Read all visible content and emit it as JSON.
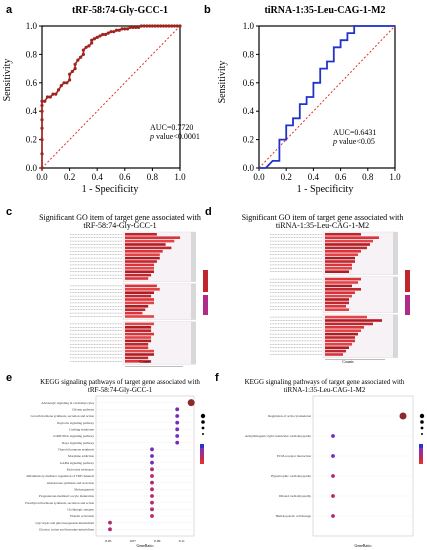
{
  "panels": {
    "a": {
      "label": "a",
      "title": "tRF-58:74-Gly-GCC-1",
      "ylabel": "Sensitivity",
      "xlabel": "1 - Specificity",
      "auc": "AUC=0.7720",
      "p_prefix": "p",
      "p_value": " value<0.0001",
      "ticks": [
        "0.0",
        "0.2",
        "0.4",
        "0.6",
        "0.8",
        "1.0"
      ]
    },
    "b": {
      "label": "b",
      "title": "tiRNA-1:35-Leu-CAG-1-M2",
      "ylabel": "Sensitivity",
      "xlabel": "1 - Specificity",
      "auc": "AUC=0.6431",
      "p_prefix": "p",
      "p_value": " value<0.05",
      "ticks": [
        "0.0",
        "0.2",
        "0.4",
        "0.6",
        "0.8",
        "1.0"
      ]
    },
    "c": {
      "label": "c",
      "title_line1": "Significant GO  item of target gene associated with",
      "title_line2": "tRF-58:74-Gly-GCC-1",
      "xlabel": "Counts"
    },
    "d": {
      "label": "d",
      "title_line1": "Significant GO  item of target gene associated with",
      "title_line2": "tiRNA-1:35-Leu-CAG-1-M2",
      "xlabel": "Counts"
    },
    "e": {
      "label": "e",
      "title_line1": "KEGG signaling pathways of target gene associated with",
      "title_line2": "tRF-58:74-Gly-GCC-1",
      "xlabel": "GeneRatio",
      "xticks": [
        "0.05",
        "0.07",
        "0.09",
        "0.11"
      ],
      "pathways": [
        "Adrenergic signaling in cardiomyocytes",
        "Glioma pathway",
        "Growth hormone synthesis, secretion and action",
        "Oxytocin signaling pathway",
        "Cushing syndrome",
        "cGMP-PKG signaling pathway",
        "Rap1 signaling pathway",
        "Thyroid hormone synthesis",
        "Morphine addiction",
        "GABA signaling pathway",
        "Endocrine resistance",
        "Inflammatory mediator regulation of TRP channels",
        "Aldosterone synthesis and secretion",
        "Melanogenesis",
        "Progesterone-mediated oocyte maturation",
        "Parathyroid hormone synthesis, secretion and action",
        "Cholinergic synapse",
        "Platelet activation",
        "Glycolysis and gluconeogenesis metabolism",
        "Glycine, serine and threonine metabolism"
      ]
    },
    "f": {
      "label": "f",
      "title_line1": "KEGG signaling pathways of target gene associated with",
      "title_line2": "tiRNA-1:35-Leu-CAG-1-M2",
      "xlabel": "GeneRatio",
      "pathways": [
        "Regulation of actin cytoskeleton",
        "Arrhythmogenic right ventricular cardiomyopathy",
        "ECM-receptor interaction",
        "Hypertrophic cardiomyopathy",
        "Dilated cardiomyopathy",
        "Hematopoietic cell lineage"
      ]
    }
  },
  "chart_data": [
    {
      "type": "line",
      "panel": "a",
      "title": "tRF-58:74-Gly-GCC-1",
      "xlabel": "1 - Specificity",
      "ylabel": "Sensitivity",
      "xlim": [
        0,
        1
      ],
      "ylim": [
        0,
        1
      ],
      "series": [
        {
          "x": [
            0,
            0,
            0,
            0,
            0,
            0,
            0,
            0,
            0.02,
            0.04,
            0.06,
            0.08,
            0.1,
            0.12,
            0.14,
            0.16,
            0.18,
            0.2,
            0.2,
            0.22,
            0.24,
            0.24,
            0.26,
            0.28,
            0.3,
            0.3,
            0.32,
            0.34,
            0.36,
            0.36,
            0.38,
            0.4,
            0.42,
            0.44,
            0.46,
            0.48,
            0.5,
            0.52,
            0.54,
            0.56,
            0.58,
            0.6,
            0.62,
            0.64,
            0.66,
            0.68,
            0.7,
            0.72,
            0.74,
            0.76,
            0.78,
            0.8,
            0.82,
            0.84,
            0.86,
            0.88,
            0.9,
            0.92,
            0.94,
            0.96,
            0.98,
            1.0
          ],
          "y": [
            0,
            0.1,
            0.2,
            0.28,
            0.34,
            0.4,
            0.44,
            0.47,
            0.47,
            0.5,
            0.5,
            0.52,
            0.52,
            0.55,
            0.58,
            0.6,
            0.6,
            0.62,
            0.66,
            0.68,
            0.7,
            0.73,
            0.76,
            0.78,
            0.8,
            0.83,
            0.85,
            0.86,
            0.88,
            0.9,
            0.91,
            0.92,
            0.93,
            0.94,
            0.94,
            0.95,
            0.96,
            0.96,
            0.97,
            0.97,
            0.98,
            0.98,
            0.98,
            0.99,
            0.99,
            0.99,
            0.99,
            1.0,
            1.0,
            1.0,
            1.0,
            1.0,
            1.0,
            1.0,
            1.0,
            1.0,
            1.0,
            1.0,
            1.0,
            1.0,
            1.0,
            1.0
          ]
        }
      ]
    },
    {
      "type": "line",
      "panel": "b",
      "title": "tiRNA-1:35-Leu-CAG-1-M2",
      "xlabel": "1 - Specificity",
      "ylabel": "Sensitivity",
      "xlim": [
        0,
        1
      ],
      "ylim": [
        0,
        1
      ],
      "series": [
        {
          "x": [
            0,
            0.05,
            0.1,
            0.15,
            0.15,
            0.2,
            0.2,
            0.25,
            0.25,
            0.3,
            0.3,
            0.35,
            0.35,
            0.4,
            0.4,
            0.45,
            0.45,
            0.5,
            0.5,
            0.55,
            0.55,
            0.6,
            0.6,
            0.65,
            0.65,
            0.7,
            0.7,
            1.0
          ],
          "y": [
            0,
            0,
            0.05,
            0.05,
            0.2,
            0.2,
            0.3,
            0.3,
            0.35,
            0.35,
            0.45,
            0.45,
            0.5,
            0.5,
            0.6,
            0.6,
            0.7,
            0.7,
            0.75,
            0.75,
            0.85,
            0.85,
            0.9,
            0.9,
            0.95,
            0.95,
            1.0,
            1.0
          ]
        }
      ]
    },
    {
      "type": "scatter",
      "panel": "e",
      "xlabel": "GeneRatio",
      "xlim": [
        0.05,
        0.12
      ],
      "categories": [
        "Adrenergic signaling in cardiomyocytes",
        "Glioma pathway",
        "Growth hormone synthesis, secretion and action",
        "Oxytocin signaling pathway",
        "Cushing syndrome",
        "cGMP-PKG signaling pathway",
        "Rap1 signaling pathway",
        "Thyroid hormone synthesis",
        "Morphine addiction",
        "GABA signaling pathway",
        "Endocrine resistance",
        "Inflammatory mediator regulation of TRP channels",
        "Aldosterone synthesis and secretion",
        "Melanogenesis",
        "Progesterone-mediated oocyte maturation",
        "Parathyroid hormone synthesis, secretion and action",
        "Cholinergic synapse",
        "Platelet activation",
        "Glycolysis and gluconeogenesis metabolism",
        "Glycine, serine and threonine metabolism"
      ],
      "values": [
        0.118,
        0.108,
        0.108,
        0.108,
        0.108,
        0.108,
        0.108,
        0.09,
        0.09,
        0.09,
        0.09,
        0.09,
        0.09,
        0.09,
        0.09,
        0.09,
        0.09,
        0.09,
        0.06,
        0.06
      ]
    },
    {
      "type": "scatter",
      "panel": "f",
      "xlabel": "GeneRatio",
      "categories": [
        "Regulation of actin cytoskeleton",
        "Arrhythmogenic right ventricular cardiomyopathy",
        "ECM-receptor interaction",
        "Hypertrophic cardiomyopathy",
        "Dilated cardiomyopathy",
        "Hematopoietic cell lineage"
      ],
      "values": [
        0.12,
        0.05,
        0.05,
        0.05,
        0.05,
        0.05
      ]
    }
  ]
}
